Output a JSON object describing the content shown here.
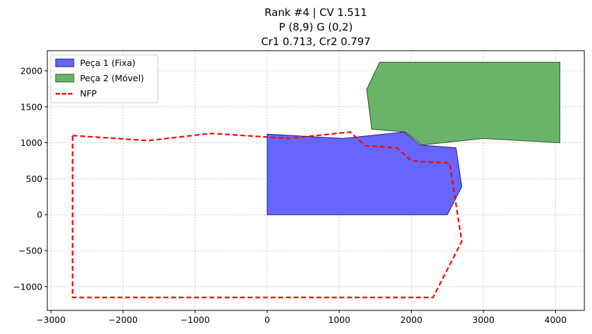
{
  "chart_data": {
    "type": "polygon-plot",
    "title_lines": [
      "Rank #4 | CV 1.511",
      "P (8,9) G (0,2)",
      "Cr1 0.713, Cr2 0.797"
    ],
    "xlim": [
      -3050,
      4400
    ],
    "ylim": [
      -1330,
      2280
    ],
    "xticks": [
      -3000,
      -2000,
      -1000,
      0,
      1000,
      2000,
      3000,
      4000
    ],
    "xtick_labels": [
      "−3000",
      "−2000",
      "−1000",
      "0",
      "1000",
      "2000",
      "3000",
      "4000"
    ],
    "yticks": [
      -1000,
      -500,
      0,
      500,
      1000,
      1500,
      2000
    ],
    "ytick_labels": [
      "−1000",
      "−500",
      "0",
      "500",
      "1000",
      "1500",
      "2000"
    ],
    "grid": true,
    "legend_position": "top-left",
    "series": [
      {
        "name": "Peça 1 (Fixa)",
        "kind": "polygon",
        "fill": "#6666ff",
        "edge": "#1f1f80",
        "points": [
          [
            0,
            0
          ],
          [
            2500,
            0
          ],
          [
            2700,
            390
          ],
          [
            2620,
            930
          ],
          [
            2120,
            970
          ],
          [
            1900,
            1150
          ],
          [
            1050,
            1060
          ],
          [
            0,
            1120
          ]
        ]
      },
      {
        "name": "Peça 2 (Móvel)",
        "kind": "polygon",
        "fill": "#6ab46a",
        "edge": "#2d4f2d",
        "points": [
          [
            1560,
            2120
          ],
          [
            4060,
            2120
          ],
          [
            4060,
            1000
          ],
          [
            3000,
            1060
          ],
          [
            2150,
            970
          ],
          [
            1920,
            1150
          ],
          [
            1450,
            1190
          ],
          [
            1380,
            1740
          ]
        ]
      },
      {
        "name": "NFP",
        "kind": "line",
        "color": "#ff0000",
        "dashed": true,
        "points": [
          [
            -2700,
            1100
          ],
          [
            -1650,
            1030
          ],
          [
            -780,
            1130
          ],
          [
            300,
            1060
          ],
          [
            1150,
            1150
          ],
          [
            1360,
            960
          ],
          [
            1800,
            930
          ],
          [
            2000,
            750
          ],
          [
            2250,
            730
          ],
          [
            2530,
            720
          ],
          [
            2700,
            -370
          ],
          [
            2300,
            -1150
          ],
          [
            -2700,
            -1150
          ],
          [
            -2700,
            1100
          ]
        ]
      }
    ]
  }
}
